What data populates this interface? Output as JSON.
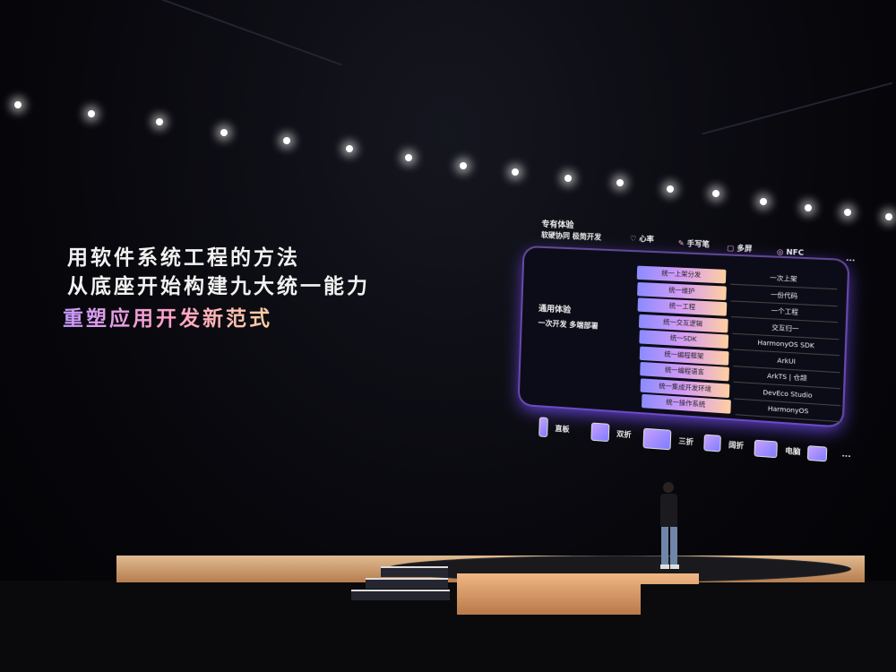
{
  "headline": {
    "line1": "用软件系统工程的方法",
    "line2": "从底座开始构建九大统一能力",
    "line3": "重塑应用开发新范式"
  },
  "slide": {
    "exclusive_title": "专有体验",
    "exclusive_subtitle": "软硬协同 极简开发",
    "features": [
      {
        "icon": "heart-rate-icon",
        "label": "心率"
      },
      {
        "icon": "stylus-icon",
        "label": "手写笔"
      },
      {
        "icon": "multi-screen-icon",
        "label": "多屏"
      },
      {
        "icon": "nfc-icon",
        "label": "NFC"
      }
    ],
    "features_more": "...",
    "general_title": "通用体验",
    "general_subtitle": "一次开发 多端部署",
    "rows": [
      {
        "pill": "统一上架分发",
        "value": "一次上架"
      },
      {
        "pill": "统一维护",
        "value": "一份代码"
      },
      {
        "pill": "统一工程",
        "value": "一个工程"
      },
      {
        "pill": "统一交互逻辑",
        "value": "交互归一"
      },
      {
        "pill": "统一SDK",
        "value": "HarmonyOS SDK"
      },
      {
        "pill": "统一编程框架",
        "value": "ArkUI"
      },
      {
        "pill": "统一编程语言",
        "value": "ArkTS | 仓颉"
      },
      {
        "pill": "统一集成开发环境",
        "value": "DevEco Studio"
      },
      {
        "pill": "统一操作系统",
        "value": "HarmonyOS"
      }
    ],
    "devices": [
      {
        "label": "直板"
      },
      {
        "label": "双折"
      },
      {
        "label": "三折"
      },
      {
        "label": "阔折"
      },
      {
        "label": "电脑"
      },
      {
        "label": ""
      }
    ],
    "devices_more": "..."
  }
}
